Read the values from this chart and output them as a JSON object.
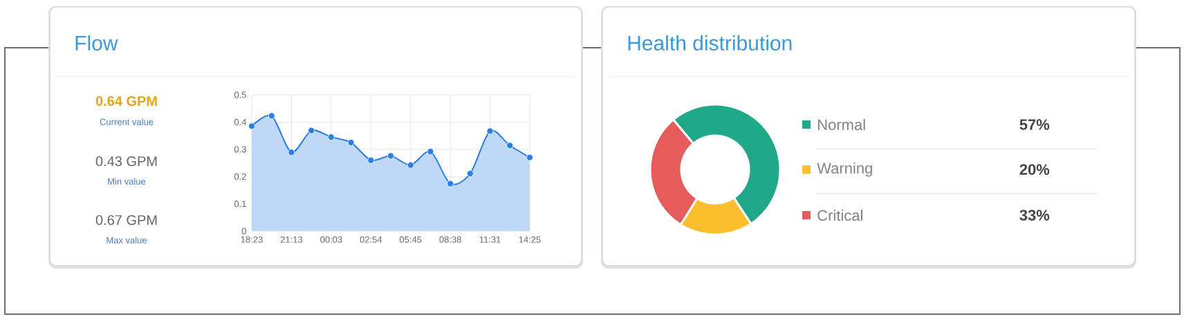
{
  "chart_data": [
    {
      "type": "area",
      "title": "Flow",
      "annotations": [
        "0.64 GPM",
        "Current value",
        "0.43 GPM",
        "Min value",
        "0.67 GPM",
        "Max value"
      ],
      "categories": [
        "18:23",
        null,
        "21:13",
        null,
        "00:03",
        null,
        "02:54",
        null,
        "05:45",
        null,
        "08:38",
        null,
        "11:31",
        null,
        "14:25"
      ],
      "values": [
        0.385,
        0.423,
        0.289,
        0.369,
        0.345,
        0.325,
        0.26,
        0.276,
        0.242,
        0.292,
        0.174,
        0.211,
        0.367,
        0.314,
        0.27
      ],
      "color": "#2a7de1",
      "marker": "circle",
      "grid": true,
      "ylim": [
        0,
        0.5
      ],
      "yticks": [
        0,
        0.1,
        0.2,
        0.3,
        0.4,
        0.5
      ]
    },
    {
      "type": "donut",
      "title": "Health distribution",
      "categories": [
        "Normal",
        "Warning",
        "Critical"
      ],
      "values": [
        57,
        20,
        33
      ],
      "value_labels": [
        "57%",
        "20%",
        "33%"
      ],
      "colors": [
        "#1fa98a",
        "#fbbf2d",
        "#e55c5a"
      ],
      "legend": "right"
    }
  ]
}
